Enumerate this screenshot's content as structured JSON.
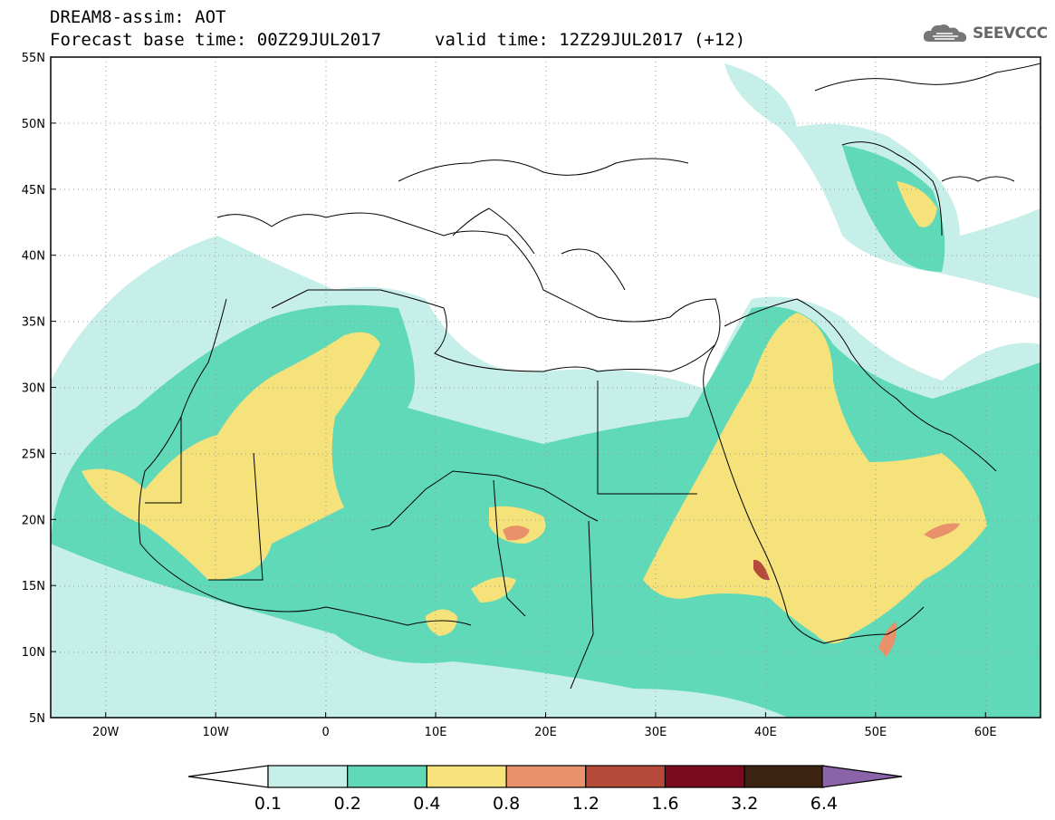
{
  "header": {
    "title": "DREAM8-assim: AOT",
    "base_time": "Forecast base time: 00Z29JUL2017",
    "valid_time": "valid time: 12Z29JUL2017 (+12)"
  },
  "logo": {
    "text": "SEEVCCC",
    "icon": "cloud-icon"
  },
  "map": {
    "lon_ticks": [
      "20W",
      "10W",
      "0",
      "10E",
      "20E",
      "30E",
      "40E",
      "50E",
      "60E"
    ],
    "lat_ticks": [
      "55N",
      "50N",
      "45N",
      "40N",
      "35N",
      "30N",
      "25N",
      "20N",
      "15N",
      "10N",
      "5N"
    ],
    "lon_range": [
      -25,
      65
    ],
    "lat_range": [
      5,
      55
    ]
  },
  "colorbar": {
    "labels": [
      "0.1",
      "0.2",
      "0.4",
      "0.8",
      "1.2",
      "1.6",
      "3.2",
      "6.4"
    ],
    "colors": [
      "#c7efe9",
      "#5fd9b8",
      "#f5e27a",
      "#e8916a",
      "#b5493a",
      "#7a0a1e",
      "#3d2412",
      "#8a63a8"
    ]
  }
}
